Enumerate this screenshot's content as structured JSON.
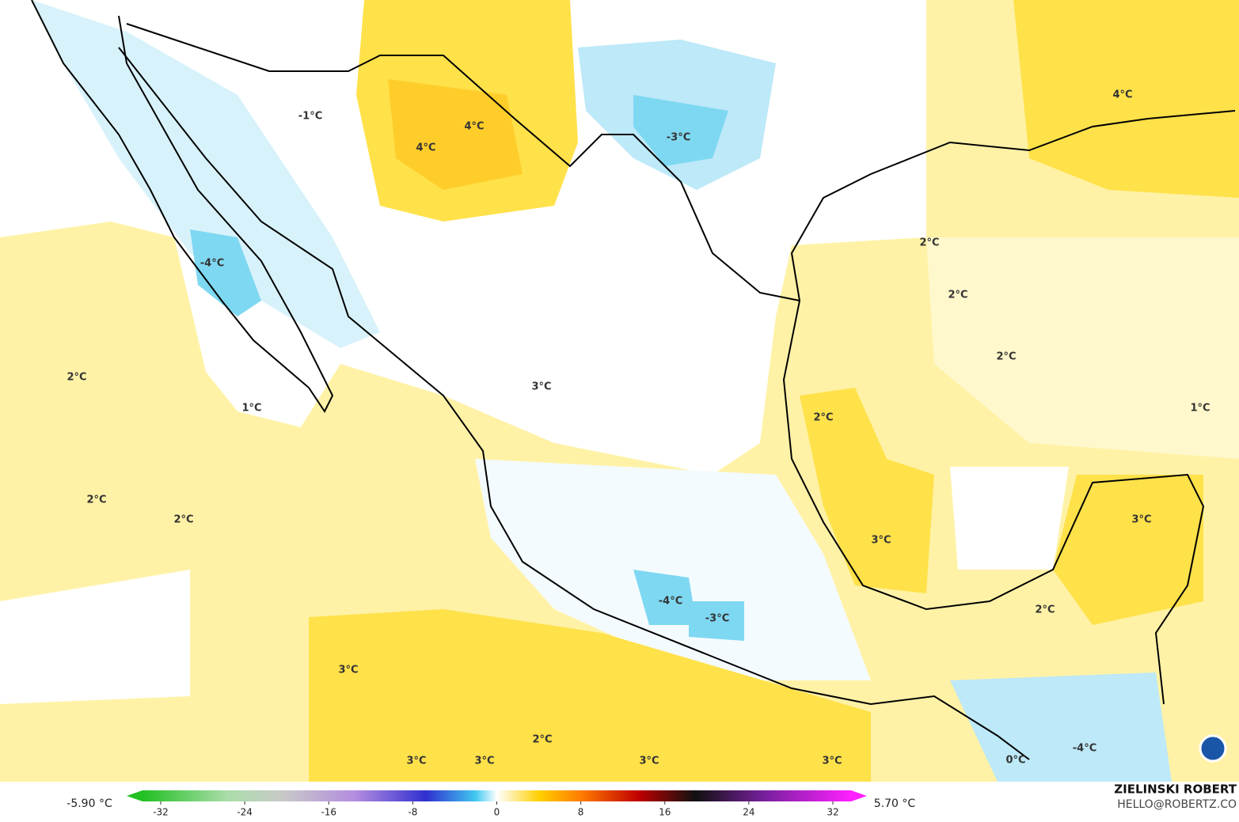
{
  "map": {
    "contour_labels": [
      "-1°C",
      "4°C",
      "4°C",
      "-3°C",
      "4°C",
      "2°C",
      "2°C",
      "-4°C",
      "2°C",
      "2°C",
      "3°C",
      "1°C",
      "2°C",
      "1°C",
      "2°C",
      "2°C",
      "3°C",
      "3°C",
      "-4°C",
      "2°C",
      "-3°C",
      "3°C",
      "2°C",
      "3°C",
      "3°C",
      "3°C",
      "3°C",
      "-4°C",
      "0°C"
    ]
  },
  "legend": {
    "min_label": "-5.90 °C",
    "max_label": "5.70 °C",
    "ticks": [
      -32,
      -24,
      -16,
      -8,
      0,
      8,
      16,
      24,
      32
    ]
  },
  "credit": {
    "name": "ZIELINSKI ROBERT",
    "email": "HELLO@ROBERTZ.CO"
  }
}
